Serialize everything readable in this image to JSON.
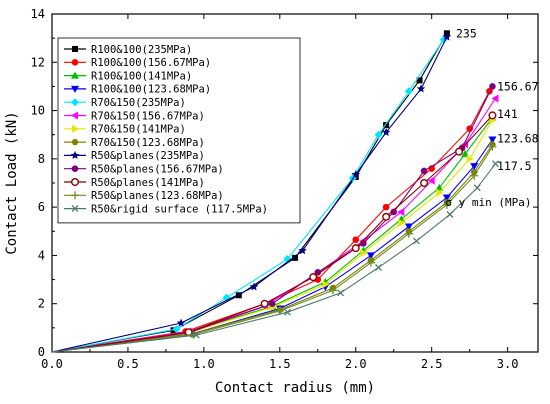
{
  "chart_data": {
    "type": "line",
    "title": "",
    "xlabel": "Contact radius (mm)",
    "ylabel": "Contact Load (kN)",
    "xlim": [
      0,
      3.2
    ],
    "ylim": [
      0,
      14
    ],
    "xticks": [
      "0.0",
      "0.5",
      "1.0",
      "1.5",
      "2.0",
      "2.5",
      "3.0"
    ],
    "yticks": [
      "0",
      "2",
      "4",
      "6",
      "8",
      "10",
      "12",
      "14"
    ],
    "grid": false,
    "legend_position": "top-left",
    "series": [
      {
        "name": "R100&100(235MPa)",
        "color": "#000000",
        "marker": "square",
        "x": [
          0,
          0.8,
          1.23,
          1.6,
          2.0,
          2.2,
          2.42,
          2.6
        ],
        "y": [
          0,
          0.9,
          2.35,
          3.9,
          7.25,
          9.4,
          11.25,
          13.2
        ]
      },
      {
        "name": "R100&100(156.67MPa)",
        "color": "#ff0000",
        "marker": "circle",
        "x": [
          0,
          0.88,
          1.4,
          1.75,
          2.0,
          2.2,
          2.5,
          2.75,
          2.88
        ],
        "y": [
          0,
          0.85,
          2.0,
          3.0,
          4.65,
          6.0,
          7.6,
          9.25,
          10.8
        ]
      },
      {
        "name": "R100&100(141MPa)",
        "color": "#00c000",
        "marker": "triangle-up",
        "x": [
          0,
          0.9,
          1.45,
          1.8,
          2.05,
          2.3,
          2.55,
          2.72,
          2.9
        ],
        "y": [
          0,
          0.8,
          1.9,
          2.9,
          4.2,
          5.5,
          6.8,
          8.2,
          9.7
        ]
      },
      {
        "name": "R100&100(123.68MPa)",
        "color": "#0000ff",
        "marker": "triangle-down",
        "x": [
          0,
          0.92,
          1.5,
          1.8,
          2.1,
          2.35,
          2.6,
          2.78,
          2.9
        ],
        "y": [
          0,
          0.75,
          1.8,
          2.7,
          4.0,
          5.2,
          6.4,
          7.7,
          8.8
        ]
      },
      {
        "name": "R70&150(235MPa)",
        "color": "#00e5ff",
        "marker": "diamond",
        "x": [
          0,
          0.82,
          1.15,
          1.55,
          1.98,
          2.15,
          2.35,
          2.58
        ],
        "y": [
          0,
          0.95,
          2.25,
          3.85,
          7.2,
          9.0,
          10.8,
          12.95
        ]
      },
      {
        "name": "R70&150(156.67MPa)",
        "color": "#ff00ff",
        "marker": "triangle-left",
        "x": [
          0,
          0.9,
          1.4,
          1.72,
          2.05,
          2.3,
          2.5,
          2.72,
          2.92
        ],
        "y": [
          0,
          0.85,
          1.9,
          3.15,
          4.6,
          5.8,
          7.1,
          8.6,
          10.5
        ]
      },
      {
        "name": "R70&150(141MPa)",
        "color": "#e6e600",
        "marker": "triangle-right",
        "x": [
          0,
          0.9,
          1.45,
          1.8,
          2.05,
          2.3,
          2.55,
          2.75,
          2.9
        ],
        "y": [
          0,
          0.8,
          1.85,
          2.8,
          4.1,
          5.35,
          6.6,
          8.0,
          9.6
        ]
      },
      {
        "name": "R70&150(123.68MPa)",
        "color": "#808000",
        "marker": "hexagon",
        "x": [
          0,
          0.92,
          1.5,
          1.85,
          2.1,
          2.35,
          2.6,
          2.78,
          2.9
        ],
        "y": [
          0,
          0.75,
          1.75,
          2.65,
          3.8,
          5.0,
          6.2,
          7.45,
          8.6
        ]
      },
      {
        "name": "R50&planes(235MPa)",
        "color": "#000080",
        "marker": "star",
        "x": [
          0,
          0.85,
          1.33,
          1.65,
          2.0,
          2.2,
          2.43,
          2.6
        ],
        "y": [
          0,
          1.2,
          2.7,
          4.2,
          7.35,
          9.1,
          10.9,
          13.05
        ]
      },
      {
        "name": "R50&planes(156.67MPa)",
        "color": "#800080",
        "marker": "circle",
        "x": [
          0,
          0.9,
          1.45,
          1.75,
          2.05,
          2.25,
          2.45,
          2.7,
          2.9
        ],
        "y": [
          0,
          0.8,
          2.0,
          3.3,
          4.5,
          5.8,
          7.5,
          8.45,
          11.0
        ]
      },
      {
        "name": "R50&planes(141MPa)",
        "color": "#8b0000",
        "marker": "half-circle",
        "x": [
          0,
          0.9,
          1.4,
          1.72,
          2.0,
          2.2,
          2.45,
          2.68,
          2.9
        ],
        "y": [
          0,
          0.82,
          2.0,
          3.1,
          4.3,
          5.6,
          7.0,
          8.3,
          9.8
        ]
      },
      {
        "name": "R50&planes(123.68MPa)",
        "color": "#6b8e23",
        "marker": "plus",
        "x": [
          0,
          0.93,
          1.5,
          1.85,
          2.1,
          2.35,
          2.6,
          2.78,
          2.9
        ],
        "y": [
          0,
          0.72,
          1.7,
          2.55,
          3.7,
          4.9,
          6.1,
          7.3,
          8.5
        ]
      },
      {
        "name": "R50&rigid surface (117.5MPa)",
        "color": "#4f7a6b",
        "marker": "x",
        "x": [
          0,
          0.95,
          1.55,
          1.9,
          2.15,
          2.4,
          2.62,
          2.8,
          2.92
        ],
        "y": [
          0,
          0.7,
          1.65,
          2.45,
          3.5,
          4.6,
          5.7,
          6.8,
          7.8
        ]
      }
    ],
    "end_labels": [
      "235",
      "156.67",
      "141",
      "123.68",
      "117.5"
    ],
    "annotation": "σ y min  (MPa)"
  }
}
